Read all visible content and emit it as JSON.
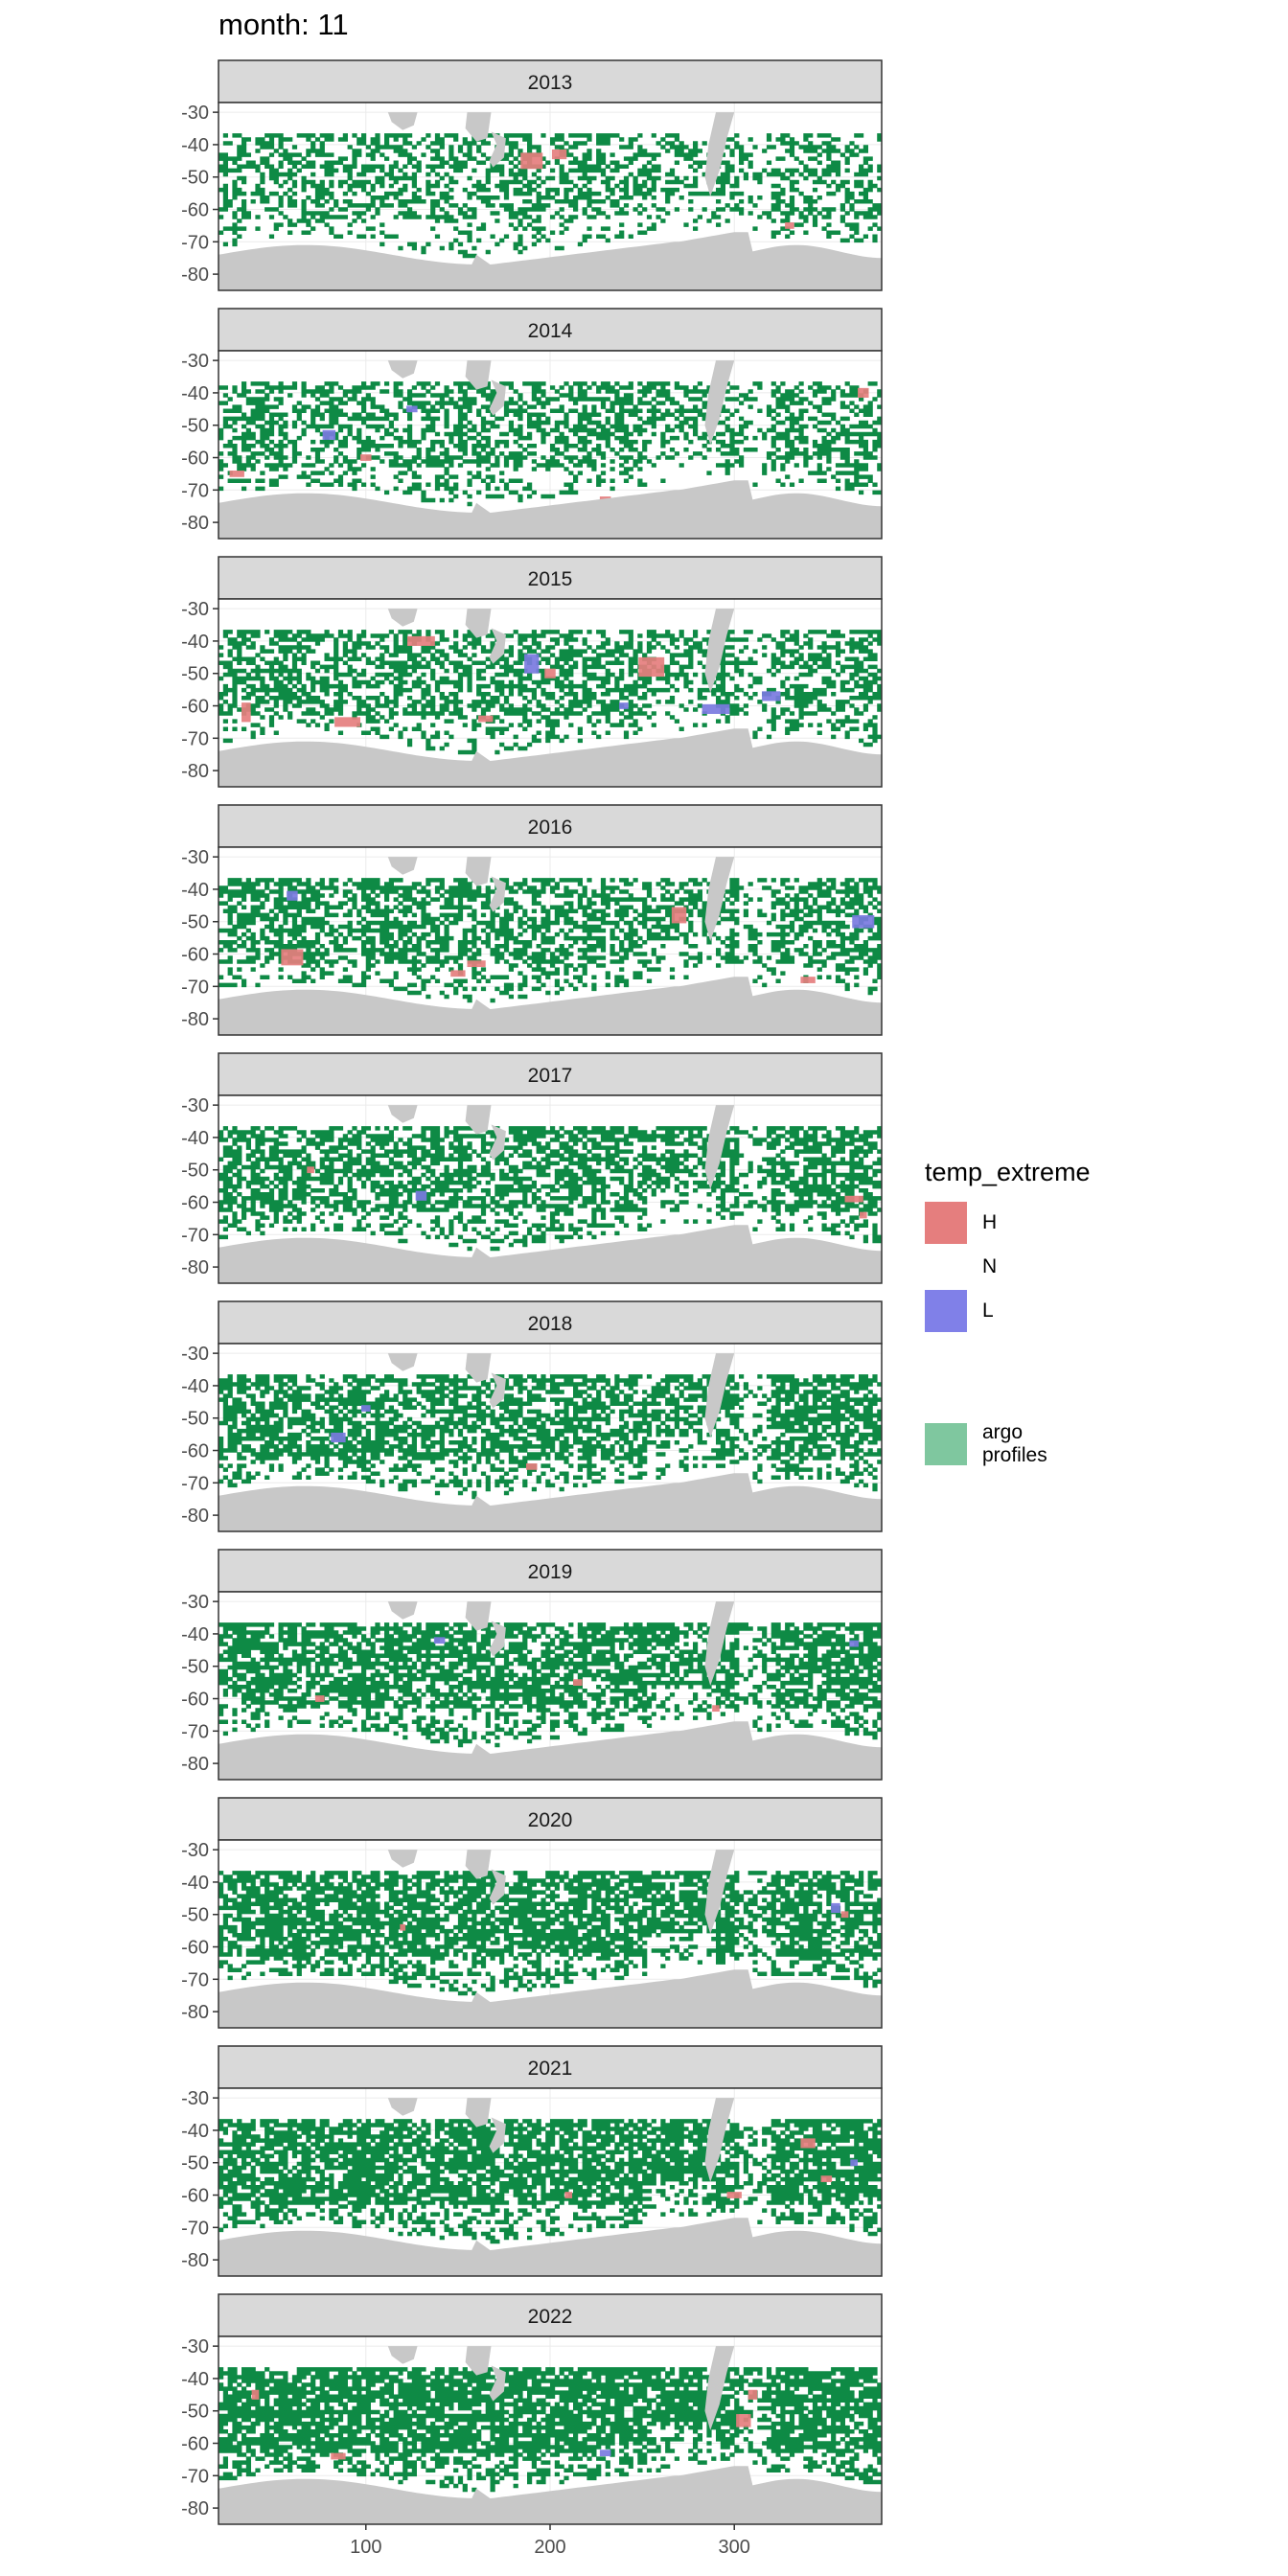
{
  "chart_data": {
    "type": "heatmap",
    "title": "month: 11",
    "facet_variable": "year",
    "facets": [
      "2013",
      "2014",
      "2015",
      "2016",
      "2017",
      "2018",
      "2019",
      "2020",
      "2021",
      "2022"
    ],
    "x_ticks": [
      100,
      200,
      300
    ],
    "y_ticks": [
      -30,
      -40,
      -50,
      -60,
      -70,
      -80
    ],
    "xlim": [
      20,
      380
    ],
    "ylim": [
      -85,
      -27
    ],
    "grid": true,
    "legend_placement": "right",
    "legend": {
      "title": "temp_extreme",
      "entries": [
        {
          "label": "H",
          "color": "#E57E7E"
        },
        {
          "label": "N",
          "color": ""
        },
        {
          "label": "L",
          "color": "#8080E8"
        }
      ],
      "argo": {
        "label": "argo\nprofiles",
        "label_lines": [
          "argo",
          "profiles"
        ],
        "color": "#7FC79F"
      }
    },
    "colors": {
      "argo_fill": "#0E8A45",
      "H": "#E57E7E",
      "L": "#7A7AE0",
      "land": "#C8C8C8",
      "strip_bg": "#D9D9D9",
      "grid": "#EBEBEB",
      "panel_border": "#333333"
    },
    "extremes": {
      "2013": {
        "H": [
          [
            190,
            -45,
            12,
            5
          ],
          [
            205,
            -43,
            8,
            3
          ],
          [
            330,
            -65,
            5,
            2
          ],
          [
            305,
            -72,
            6,
            2
          ]
        ],
        "L": []
      },
      "2014": {
        "H": [
          [
            30,
            -65,
            8,
            2
          ],
          [
            100,
            -60,
            6,
            2
          ],
          [
            370,
            -40,
            6,
            3
          ],
          [
            230,
            -73,
            6,
            2
          ]
        ],
        "L": [
          [
            80,
            -53,
            7,
            3
          ],
          [
            125,
            -45,
            6,
            2
          ]
        ]
      },
      "2015": {
        "H": [
          [
            90,
            -65,
            14,
            3
          ],
          [
            35,
            -62,
            5,
            6
          ],
          [
            130,
            -40,
            15,
            3
          ],
          [
            255,
            -48,
            14,
            6
          ],
          [
            165,
            -64,
            8,
            2
          ],
          [
            200,
            -50,
            6,
            3
          ]
        ],
        "L": [
          [
            190,
            -47,
            8,
            6
          ],
          [
            290,
            -61,
            15,
            3
          ],
          [
            320,
            -57,
            10,
            3
          ],
          [
            240,
            -60,
            5,
            2
          ]
        ]
      },
      "2016": {
        "H": [
          [
            60,
            -61,
            12,
            5
          ],
          [
            160,
            -63,
            10,
            2
          ],
          [
            270,
            -48,
            8,
            5
          ],
          [
            150,
            -66,
            8,
            2
          ],
          [
            340,
            -68,
            8,
            2
          ]
        ],
        "L": [
          [
            370,
            -50,
            12,
            4
          ],
          [
            60,
            -42,
            6,
            3
          ]
        ]
      },
      "2017": {
        "H": [
          [
            365,
            -59,
            10,
            2
          ],
          [
            370,
            -64,
            4,
            2
          ],
          [
            70,
            -50,
            4,
            2
          ]
        ],
        "L": [
          [
            130,
            -58,
            6,
            3
          ]
        ]
      },
      "2018": {
        "H": [
          [
            190,
            -65,
            6,
            2
          ]
        ],
        "L": [
          [
            85,
            -56,
            8,
            3
          ],
          [
            100,
            -47,
            5,
            2
          ]
        ]
      },
      "2019": {
        "H": [
          [
            75,
            -60,
            5,
            2
          ],
          [
            215,
            -55,
            5,
            2
          ],
          [
            290,
            -63,
            4,
            2
          ]
        ],
        "L": [
          [
            140,
            -42,
            6,
            2
          ],
          [
            365,
            -43,
            5,
            2
          ]
        ]
      },
      "2020": {
        "H": [
          [
            120,
            -54,
            3,
            2
          ],
          [
            360,
            -50,
            4,
            2
          ]
        ],
        "L": [
          [
            355,
            -48,
            5,
            3
          ]
        ]
      },
      "2021": {
        "H": [
          [
            340,
            -44,
            8,
            3
          ],
          [
            300,
            -60,
            8,
            2
          ],
          [
            350,
            -55,
            6,
            2
          ],
          [
            210,
            -60,
            4,
            2
          ]
        ],
        "L": [
          [
            365,
            -50,
            4,
            2
          ]
        ]
      },
      "2022": {
        "H": [
          [
            305,
            -53,
            8,
            4
          ],
          [
            290,
            -70,
            12,
            2
          ],
          [
            85,
            -64,
            8,
            2
          ],
          [
            40,
            -45,
            4,
            3
          ],
          [
            310,
            -45,
            5,
            3
          ]
        ],
        "L": [
          [
            230,
            -63,
            6,
            2
          ]
        ]
      }
    }
  }
}
